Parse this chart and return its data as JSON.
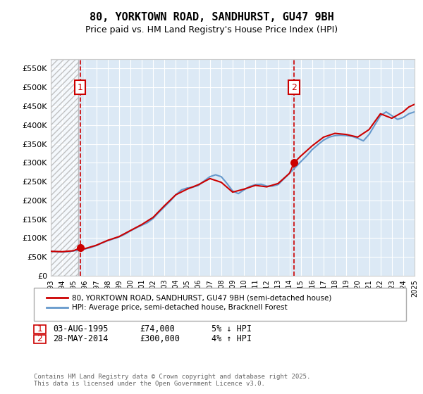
{
  "title": "80, YORKTOWN ROAD, SANDHURST, GU47 9BH",
  "subtitle": "Price paid vs. HM Land Registry's House Price Index (HPI)",
  "background_color": "#ffffff",
  "plot_bg_color": "#dce9f5",
  "hatch_color": "#c0c0c0",
  "ylabel": "",
  "ylim": [
    0,
    575000
  ],
  "yticks": [
    0,
    50000,
    100000,
    150000,
    200000,
    250000,
    300000,
    350000,
    400000,
    450000,
    500000,
    550000
  ],
  "ytick_labels": [
    "£0",
    "£50K",
    "£100K",
    "£150K",
    "£200K",
    "£250K",
    "£300K",
    "£350K",
    "£400K",
    "£450K",
    "£500K",
    "£550K"
  ],
  "xmin_year": 1993,
  "xmax_year": 2025,
  "xtick_years": [
    1993,
    1994,
    1995,
    1996,
    1997,
    1998,
    1999,
    2000,
    2001,
    2002,
    2003,
    2004,
    2005,
    2006,
    2007,
    2008,
    2009,
    2010,
    2011,
    2012,
    2013,
    2014,
    2015,
    2016,
    2017,
    2018,
    2019,
    2020,
    2021,
    2022,
    2023,
    2024,
    2025
  ],
  "red_line_color": "#cc0000",
  "blue_line_color": "#6699cc",
  "marker_color": "#cc0000",
  "annotation_box_color": "#cc0000",
  "sale1": {
    "year": 1995.58,
    "price": 74000,
    "label": "1",
    "vline_x": 1995.58
  },
  "sale2": {
    "year": 2014.4,
    "price": 300000,
    "label": "2",
    "vline_x": 2014.4
  },
  "legend_label1": "80, YORKTOWN ROAD, SANDHURST, GU47 9BH (semi-detached house)",
  "legend_label2": "HPI: Average price, semi-detached house, Bracknell Forest",
  "table_rows": [
    {
      "num": "1",
      "date": "03-AUG-1995",
      "price": "£74,000",
      "hpi": "5% ↓ HPI"
    },
    {
      "num": "2",
      "date": "28-MAY-2014",
      "price": "£300,000",
      "hpi": "4% ↑ HPI"
    }
  ],
  "footer": "Contains HM Land Registry data © Crown copyright and database right 2025.\nThis data is licensed under the Open Government Licence v3.0.",
  "hpi_data_x": [
    1993.0,
    1993.5,
    1994.0,
    1994.5,
    1995.0,
    1995.5,
    1996.0,
    1996.5,
    1997.0,
    1997.5,
    1998.0,
    1998.5,
    1999.0,
    1999.5,
    2000.0,
    2000.5,
    2001.0,
    2001.5,
    2002.0,
    2002.5,
    2003.0,
    2003.5,
    2004.0,
    2004.5,
    2005.0,
    2005.5,
    2006.0,
    2006.5,
    2007.0,
    2007.5,
    2008.0,
    2008.5,
    2009.0,
    2009.5,
    2010.0,
    2010.5,
    2011.0,
    2011.5,
    2012.0,
    2012.5,
    2013.0,
    2013.5,
    2014.0,
    2014.5,
    2015.0,
    2015.5,
    2016.0,
    2016.5,
    2017.0,
    2017.5,
    2018.0,
    2018.5,
    2019.0,
    2019.5,
    2020.0,
    2020.5,
    2021.0,
    2021.5,
    2022.0,
    2022.5,
    2023.0,
    2023.5,
    2024.0,
    2024.5,
    2025.0
  ],
  "hpi_data_y": [
    65000,
    64000,
    63000,
    64000,
    66000,
    68000,
    71000,
    75000,
    80000,
    87000,
    93000,
    98000,
    103000,
    110000,
    119000,
    127000,
    134000,
    141000,
    152000,
    168000,
    183000,
    198000,
    215000,
    228000,
    233000,
    235000,
    240000,
    252000,
    263000,
    268000,
    263000,
    245000,
    225000,
    218000,
    228000,
    237000,
    242000,
    243000,
    238000,
    238000,
    242000,
    257000,
    272000,
    287000,
    303000,
    318000,
    335000,
    348000,
    360000,
    368000,
    372000,
    373000,
    372000,
    370000,
    365000,
    358000,
    375000,
    400000,
    425000,
    435000,
    425000,
    415000,
    420000,
    430000,
    435000
  ],
  "price_data_x": [
    1993.0,
    1994.0,
    1995.0,
    1995.58,
    1996.0,
    1997.0,
    1998.0,
    1999.0,
    2000.0,
    2001.0,
    2002.0,
    2003.0,
    2004.0,
    2005.0,
    2006.0,
    2007.0,
    2008.0,
    2009.0,
    2010.0,
    2011.0,
    2012.0,
    2013.0,
    2014.0,
    2014.4,
    2015.0,
    2016.0,
    2017.0,
    2018.0,
    2019.0,
    2020.0,
    2021.0,
    2022.0,
    2023.0,
    2024.0,
    2024.5,
    2025.0
  ],
  "price_data_y": [
    65000,
    64000,
    66500,
    74000,
    72000,
    81000,
    94000,
    104000,
    120000,
    136000,
    155000,
    186000,
    215000,
    230000,
    242000,
    258000,
    248000,
    222000,
    230000,
    240000,
    236000,
    245000,
    272000,
    300000,
    318000,
    345000,
    368000,
    378000,
    375000,
    368000,
    388000,
    430000,
    418000,
    435000,
    448000,
    455000
  ]
}
